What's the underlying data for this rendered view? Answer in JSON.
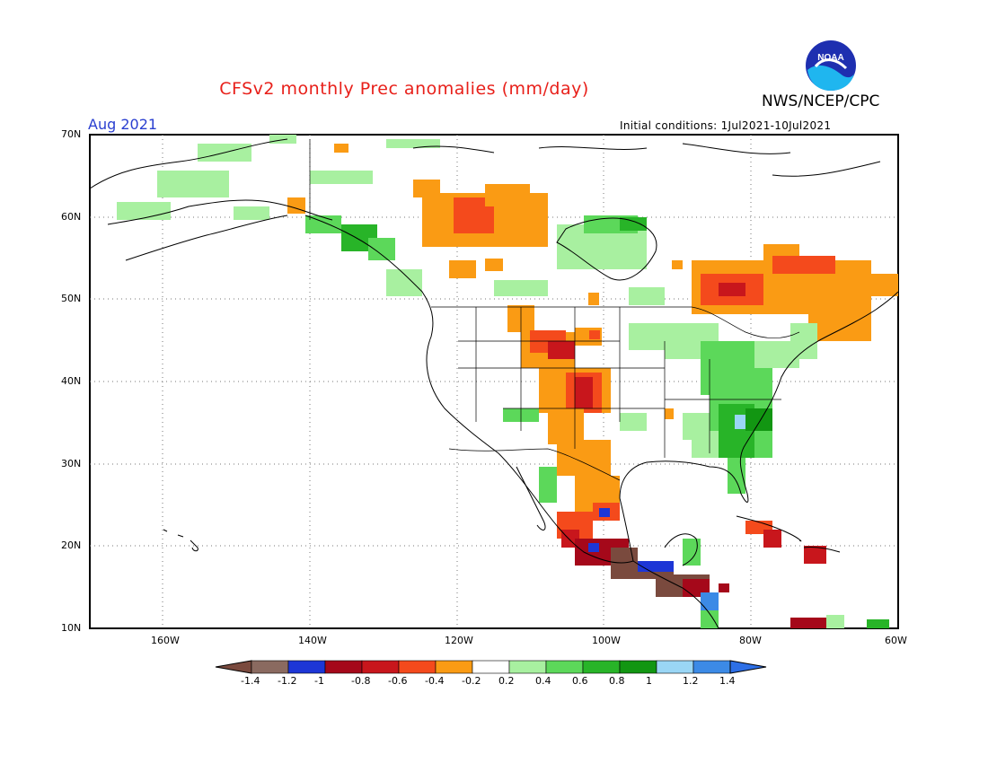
{
  "title": "CFSv2 monthly Prec anomalies (mm/day)",
  "agency": "NWS/NCEP/CPC",
  "month": "Aug 2021",
  "initial_conditions": "Initial conditions: 1Jul2021-10Jul2021",
  "logo": {
    "text": "NOAA",
    "icon": "noaa-logo-icon"
  },
  "lat_labels": [
    "70N",
    "60N",
    "50N",
    "40N",
    "30N",
    "20N",
    "10N"
  ],
  "lon_labels": [
    "160W",
    "140W",
    "120W",
    "100W",
    "80W",
    "60W"
  ],
  "colorbar": {
    "labels": [
      "-1.4",
      "-1.2",
      "-1",
      "-0.8",
      "-0.6",
      "-0.4",
      "-0.2",
      "0.2",
      "0.4",
      "0.6",
      "0.8",
      "1",
      "1.2",
      "1.4"
    ],
    "colors": [
      "#7a4a3e",
      "#8a6a60",
      "#1d36d6",
      "#a5081a",
      "#c8161c",
      "#f44a1c",
      "#fa9b14",
      "#ffffff",
      "#a8f0a0",
      "#5cd85a",
      "#28b428",
      "#129612",
      "#9ad6f5",
      "#3c8ae6",
      "#2d6fe6"
    ]
  },
  "regions": [
    {
      "name": "canada-northwest",
      "level": "-0.4"
    },
    {
      "name": "northern-rockies",
      "level": "-0.6"
    },
    {
      "name": "central-plains",
      "level": "-0.8"
    },
    {
      "name": "quebec",
      "level": "-0.6"
    },
    {
      "name": "southeast-us",
      "level": "0.8"
    },
    {
      "name": "central-america",
      "level": "-1.4"
    }
  ]
}
